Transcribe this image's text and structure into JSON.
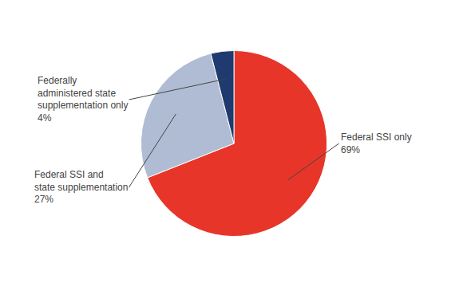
{
  "chart_data": {
    "type": "pie",
    "values": [
      69,
      27,
      4
    ],
    "colors": [
      "#e8352a",
      "#b0bcd4",
      "#1e3a6e"
    ],
    "annotations": [
      "Federal SSI only\n69%",
      "Federal SSI and\nstate supplementation\n27%",
      "Federally\nadministered state\nsupplementation only\n4%"
    ]
  }
}
